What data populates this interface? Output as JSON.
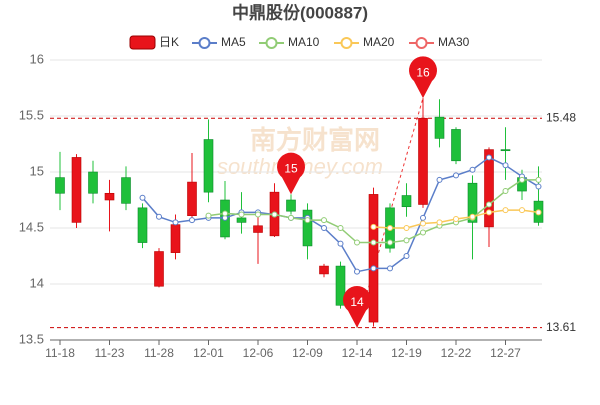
{
  "chart_data": {
    "type": "candlestick",
    "title": "中鼎股份(000887)",
    "watermark": [
      "南方财富网",
      "southmoney.com"
    ],
    "categories": [
      "11-18",
      null,
      null,
      "11-23",
      null,
      null,
      "11-28",
      null,
      null,
      "12-01",
      null,
      null,
      "12-06",
      null,
      null,
      "12-09",
      null,
      null,
      "12-14",
      null,
      null,
      "12-19",
      null,
      null,
      "12-22",
      null,
      null,
      "12-27",
      null,
      null
    ],
    "candles": {
      "name": "日K",
      "up_color": "#e8141b",
      "down_color": "#1fc03a",
      "open": [
        14.95,
        14.55,
        15.0,
        14.75,
        14.95,
        14.68,
        13.98,
        14.28,
        14.61,
        15.29,
        14.75,
        14.59,
        14.46,
        14.43,
        14.75,
        14.66,
        14.09,
        14.16,
        13.8,
        13.66,
        14.68,
        14.79,
        14.71,
        15.49,
        15.38,
        14.9,
        14.51,
        15.2,
        14.95,
        14.74
      ],
      "high": [
        15.18,
        15.16,
        15.1,
        14.93,
        15.05,
        14.72,
        14.32,
        14.62,
        15.17,
        15.47,
        14.92,
        14.82,
        14.62,
        14.9,
        14.8,
        14.72,
        14.18,
        14.2,
        13.85,
        14.86,
        14.72,
        14.9,
        15.66,
        15.65,
        15.4,
        14.97,
        15.22,
        15.4,
        15.02,
        15.05
      ],
      "low": [
        14.66,
        14.5,
        14.72,
        14.47,
        14.66,
        14.32,
        13.97,
        14.22,
        14.56,
        14.73,
        14.4,
        14.45,
        14.18,
        14.42,
        14.62,
        14.22,
        14.06,
        13.78,
        13.61,
        13.62,
        14.28,
        14.6,
        14.68,
        15.22,
        15.07,
        14.22,
        14.33,
        14.93,
        14.75,
        14.52
      ],
      "close": [
        14.81,
        15.13,
        14.81,
        14.81,
        14.72,
        14.37,
        14.29,
        14.53,
        14.91,
        14.82,
        14.42,
        14.55,
        14.52,
        14.82,
        14.65,
        14.34,
        14.16,
        13.81,
        13.7,
        14.8,
        14.32,
        14.69,
        15.48,
        15.3,
        15.1,
        14.55,
        15.2,
        15.19,
        14.83,
        14.55
      ]
    },
    "series": [
      {
        "name": "MA5",
        "color": "#5b7ec9",
        "values": [
          null,
          null,
          null,
          null,
          null,
          14.77,
          14.6,
          14.55,
          14.57,
          14.59,
          14.59,
          14.64,
          14.64,
          14.62,
          14.59,
          14.59,
          14.5,
          14.36,
          14.11,
          14.14,
          14.14,
          14.25,
          14.59,
          14.93,
          14.97,
          15.02,
          15.13,
          15.06,
          14.96,
          14.87
        ]
      },
      {
        "name": "MA10",
        "color": "#91cc75",
        "values": [
          null,
          null,
          null,
          null,
          null,
          null,
          null,
          null,
          null,
          14.61,
          14.63,
          14.62,
          14.62,
          14.62,
          14.59,
          14.57,
          14.57,
          14.5,
          14.37,
          14.37,
          14.37,
          14.39,
          14.46,
          14.52,
          14.55,
          14.59,
          14.71,
          14.83,
          14.93,
          14.93
        ]
      },
      {
        "name": "MA20",
        "color": "#fac858",
        "values": [
          null,
          null,
          null,
          null,
          null,
          null,
          null,
          null,
          null,
          null,
          null,
          null,
          null,
          null,
          null,
          null,
          null,
          null,
          null,
          14.51,
          14.5,
          14.5,
          14.54,
          14.55,
          14.58,
          14.6,
          14.64,
          14.66,
          14.66,
          14.64
        ]
      },
      {
        "name": "MA30",
        "color": "#ee6666",
        "values": [
          null,
          null,
          null,
          null,
          null,
          null,
          null,
          null,
          null,
          null,
          null,
          null,
          null,
          null,
          null,
          null,
          null,
          null,
          null,
          null,
          null,
          null,
          null,
          null,
          null,
          null,
          null,
          null,
          null,
          null
        ]
      }
    ],
    "reference_lines": [
      15.48,
      13.61
    ],
    "pins": [
      {
        "text": "16",
        "value": 15.66
      },
      {
        "text": "15",
        "value": 14.8
      },
      {
        "text": "14",
        "value": 13.61
      }
    ],
    "ylim": [
      13.5,
      16
    ],
    "yticks": [
      13.5,
      14,
      14.5,
      15,
      15.5,
      16
    ],
    "grid": true
  }
}
